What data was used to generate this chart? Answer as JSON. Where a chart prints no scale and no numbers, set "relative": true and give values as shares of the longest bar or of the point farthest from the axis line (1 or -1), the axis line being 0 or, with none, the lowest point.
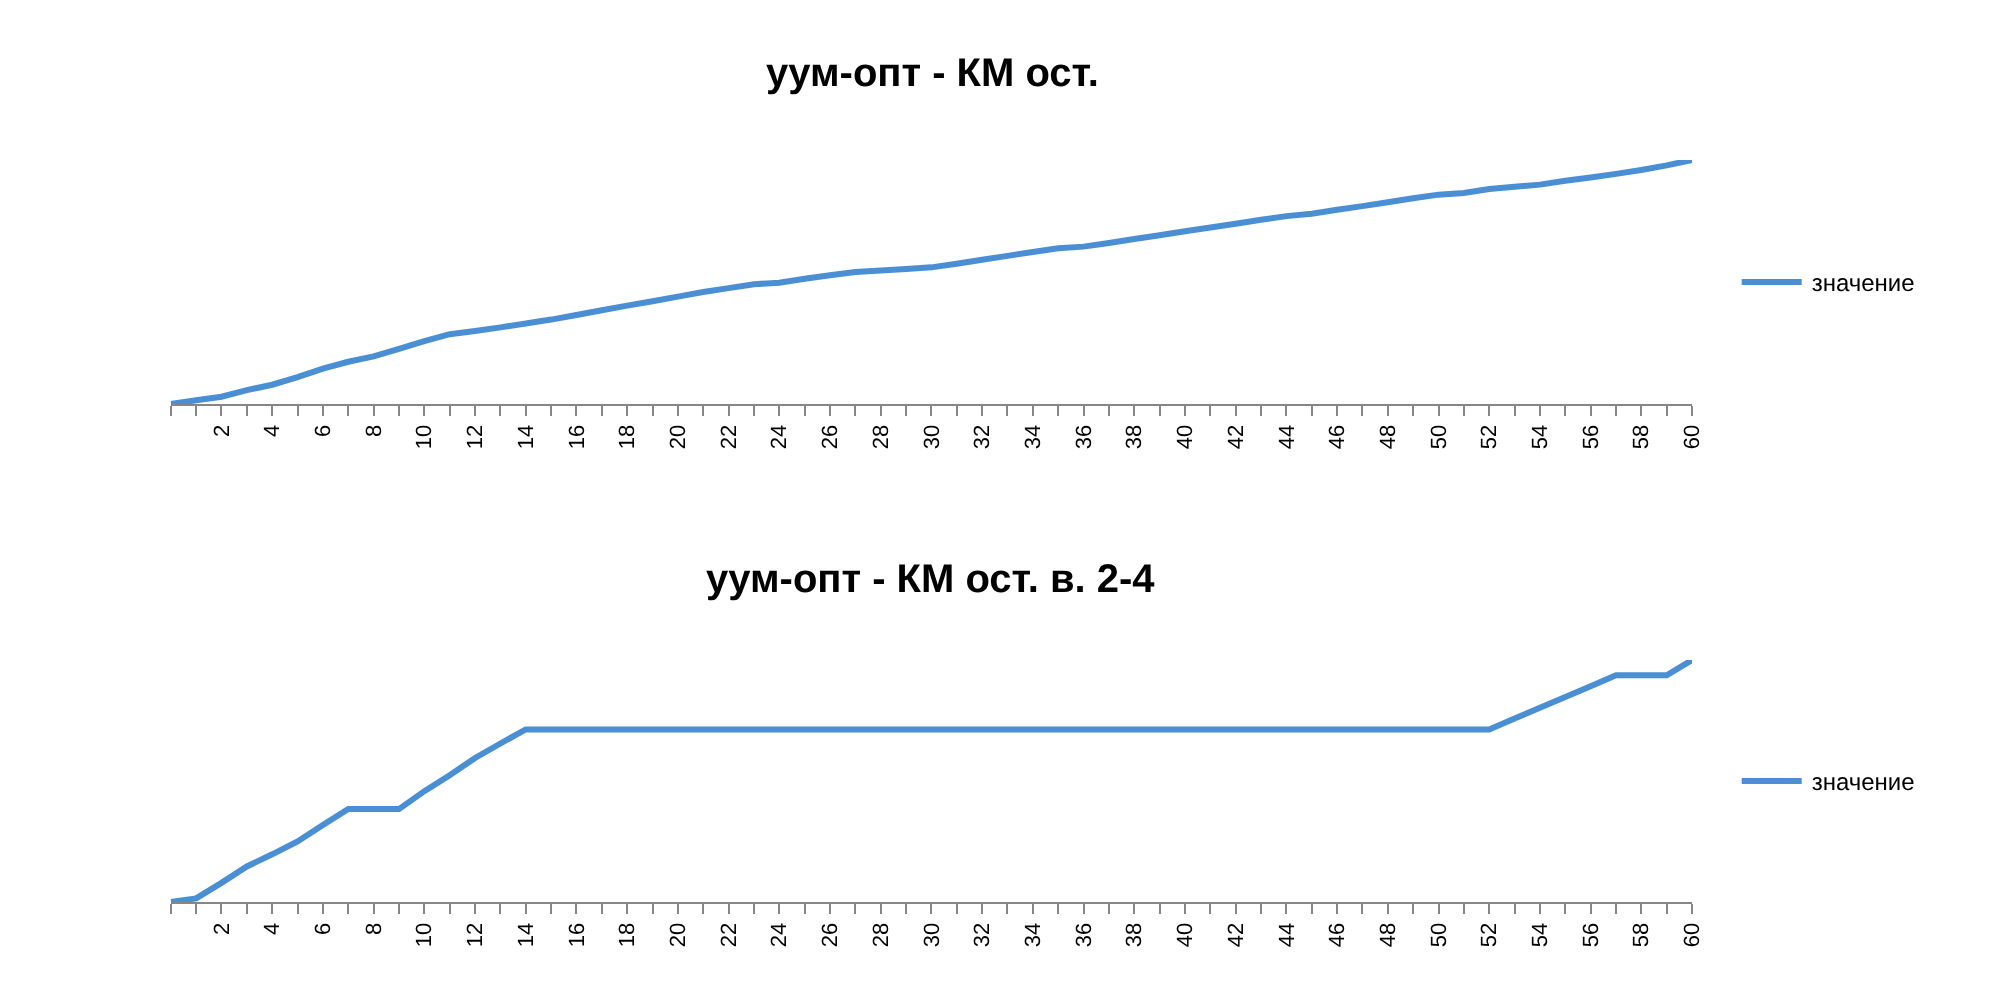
{
  "chart_data": [
    {
      "type": "line",
      "title": "уум-опт - КМ ост.",
      "relative": true,
      "legend": "right",
      "tick_labels": "x",
      "categories": [
        null,
        null,
        "2",
        null,
        "4",
        null,
        "6",
        null,
        "8",
        null,
        "10",
        null,
        "12",
        null,
        "14",
        null,
        "16",
        null,
        "18",
        null,
        "20",
        null,
        "22",
        null,
        "24",
        null,
        "26",
        null,
        "28",
        null,
        "30",
        null,
        "32",
        null,
        "34",
        null,
        "36",
        null,
        "38",
        null,
        "40",
        null,
        "42",
        null,
        "44",
        null,
        "46",
        null,
        "48",
        null,
        "50",
        null,
        "52",
        null,
        "54",
        null,
        "56",
        null,
        "58",
        null,
        "60"
      ],
      "series": [
        {
          "name": "значение",
          "color": "#4a8fd4",
          "values": [
            0,
            0.015,
            0.03,
            0.057,
            0.079,
            0.11,
            0.145,
            0.173,
            0.195,
            0.226,
            0.258,
            0.286,
            0.299,
            0.314,
            0.33,
            0.346,
            0.365,
            0.384,
            0.403,
            0.421,
            0.44,
            0.459,
            0.475,
            0.491,
            0.497,
            0.513,
            0.528,
            0.541,
            0.547,
            0.553,
            0.56,
            0.575,
            0.591,
            0.607,
            0.623,
            0.638,
            0.645,
            0.66,
            0.676,
            0.692,
            0.708,
            0.723,
            0.739,
            0.755,
            0.77,
            0.78,
            0.796,
            0.811,
            0.827,
            0.843,
            0.858,
            0.865,
            0.881,
            0.89,
            0.899,
            0.915,
            0.928,
            0.943,
            0.959,
            0.978,
            1
          ]
        }
      ]
    },
    {
      "type": "line",
      "title": "уум-опт - КМ ост. в. 2-4",
      "relative": true,
      "legend": "right",
      "tick_labels": "x",
      "categories": [
        null,
        null,
        "2",
        null,
        "4",
        null,
        "6",
        null,
        "8",
        null,
        "10",
        null,
        "12",
        null,
        "14",
        null,
        "16",
        null,
        "18",
        null,
        "20",
        null,
        "22",
        null,
        "24",
        null,
        "26",
        null,
        "28",
        null,
        "30",
        null,
        "32",
        null,
        "34",
        null,
        "36",
        null,
        "38",
        null,
        "40",
        null,
        "42",
        null,
        "44",
        null,
        "46",
        null,
        "48",
        null,
        "50",
        null,
        "52",
        null,
        "54",
        null,
        "56",
        null,
        "58",
        null,
        "60"
      ],
      "series": [
        {
          "name": "значение",
          "color": "#4a8fd4",
          "values": [
            0,
            0.015,
            0.079,
            0.147,
            0.197,
            0.25,
            0.318,
            0.384,
            0.384,
            0.384,
            0.458,
            0.524,
            0.595,
            0.655,
            0.713,
            0.713,
            0.713,
            0.713,
            0.713,
            0.713,
            0.713,
            0.713,
            0.713,
            0.713,
            0.713,
            0.713,
            0.713,
            0.713,
            0.713,
            0.713,
            0.713,
            0.713,
            0.713,
            0.713,
            0.713,
            0.713,
            0.713,
            0.713,
            0.713,
            0.713,
            0.713,
            0.713,
            0.713,
            0.713,
            0.713,
            0.713,
            0.713,
            0.713,
            0.713,
            0.713,
            0.713,
            0.713,
            0.713,
            0.758,
            0.803,
            0.847,
            0.892,
            0.937,
            0.937,
            0.937,
            1
          ]
        }
      ]
    }
  ]
}
